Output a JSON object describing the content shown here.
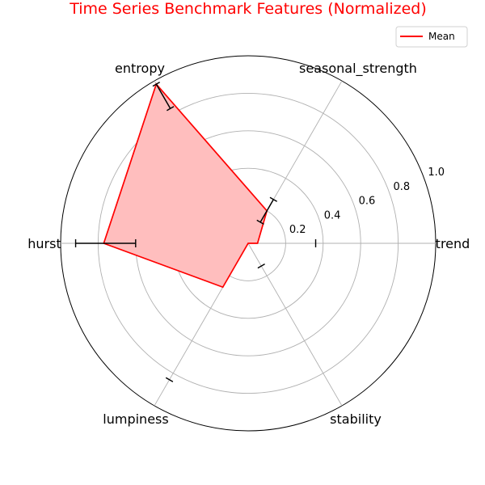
{
  "chart_data": {
    "type": "radar",
    "title": "Time Series Benchmark Features (Normalized)",
    "axes": [
      "trend",
      "seasonal_strength",
      "entropy",
      "hurst",
      "lumpiness",
      "stability"
    ],
    "series": [
      {
        "name": "Mean",
        "values": [
          0.05,
          0.2,
          0.98,
          0.77,
          0.27,
          0.0
        ],
        "error_low": [
          null,
          0.13,
          0.83,
          0.6,
          null,
          null
        ],
        "error_high": [
          0.36,
          0.27,
          0.98,
          0.92,
          0.84,
          0.14
        ],
        "color": "#ff0000",
        "fill": "#ffbebe"
      }
    ],
    "rlim": [
      0,
      1.0
    ],
    "radial_ticks": [
      0.2,
      0.4,
      0.6,
      0.8,
      1.0
    ],
    "radial_tick_labels": [
      "0.2",
      "0.4",
      "0.6",
      "0.8",
      "1.0"
    ],
    "grid": true,
    "legend_position": "top-right",
    "title_color": "#ff0000"
  }
}
